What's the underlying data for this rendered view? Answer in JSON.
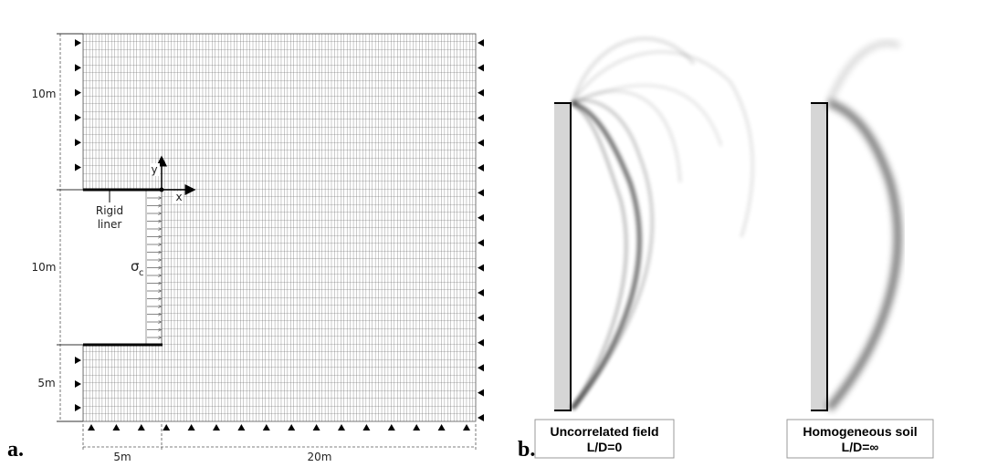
{
  "panel_a": {
    "label": "a.",
    "dim_left_top": "10m",
    "dim_left_mid": "10m",
    "dim_left_bottom": "5m",
    "dim_bottom_left": "5m",
    "dim_bottom_right": "20m",
    "liner_line1": "Rigid",
    "liner_line2": "liner",
    "stress_symbol": "σ",
    "stress_subscript": "c",
    "axis_x": "x",
    "axis_y": "y"
  },
  "panel_b": {
    "label": "b.",
    "left_caption_line1": "Uncorrelated field",
    "left_caption_line2": "L/D=0",
    "right_caption_line1": "Homogeneous soil",
    "right_caption_line2": "L/D=∞"
  }
}
